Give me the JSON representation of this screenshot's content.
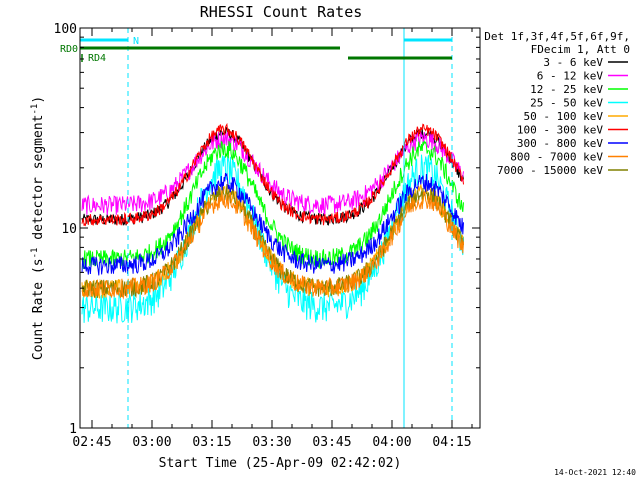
{
  "chart_data": {
    "type": "line",
    "title": "RHESSI Count Rates",
    "xlabel": "Start Time (25-Apr-09 02:42:02)",
    "ylabel_parts": [
      "Count Rate (s",
      "-1",
      " detector segment",
      "-1",
      ")"
    ],
    "y_scale": "log",
    "ylim": [
      1,
      100
    ],
    "y_ticks": [
      {
        "value": 1,
        "label": "1"
      },
      {
        "value": 10,
        "label": "10"
      },
      {
        "value": 100,
        "label": "100"
      }
    ],
    "x_range": [
      "02:42",
      "04:22"
    ],
    "x_ticks": [
      "02:45",
      "03:00",
      "03:15",
      "03:30",
      "03:45",
      "04:00",
      "04:15"
    ],
    "legend_header": [
      "Det 1f,3f,4f,5f,6f,9f,",
      "FDecim 1, Att 0"
    ],
    "series": [
      {
        "name": "3 - 6 keV",
        "color": "#000000",
        "night": 11,
        "peak": 30
      },
      {
        "name": "6 - 12 keV",
        "color": "#ff00ff",
        "night": 13,
        "peak": 28
      },
      {
        "name": "12 - 25 keV",
        "color": "#00ff00",
        "night": 7,
        "peak": 25
      },
      {
        "name": "25 - 50 keV",
        "color": "#00ffff",
        "night": 4,
        "peak": 20
      },
      {
        "name": "50 - 100 keV",
        "color": "#ffaa00",
        "night": 5,
        "peak": 15
      },
      {
        "name": "100 - 300 keV",
        "color": "#ff0000",
        "night": 11,
        "peak": 31
      },
      {
        "name": "300 - 800 keV",
        "color": "#0000ff",
        "night": 6.5,
        "peak": 17
      },
      {
        "name": "800 - 7000 keV",
        "color": "#ff8000",
        "night": 5,
        "peak": 14
      },
      {
        "name": "7000 - 15000 keV",
        "color": "#808000",
        "night": 5,
        "peak": 15
      }
    ],
    "draw_order": [
      0,
      1,
      3,
      4,
      8,
      2,
      6,
      7,
      5
    ],
    "orbit_peaks": [
      "03:18",
      "04:08"
    ],
    "bands": [
      {
        "label": "N",
        "color": "#00e5ff",
        "segments": [
          [
            "02:42",
            "02:54"
          ],
          [
            "04:03",
            "04:15"
          ]
        ]
      },
      {
        "label": "RD0",
        "color": "#007700",
        "segments": [
          [
            "02:42",
            "03:47"
          ]
        ]
      },
      {
        "label": "RD4",
        "color": "#007700",
        "segments": [
          [
            "03:49",
            "04:15"
          ]
        ]
      }
    ],
    "vertical_lines": [
      {
        "time": "02:42",
        "style": "solid"
      },
      {
        "time": "02:54",
        "style": "dashed"
      },
      {
        "time": "04:03",
        "style": "solid"
      },
      {
        "time": "04:15",
        "style": "dashed"
      }
    ],
    "vline_color": "#00e5ff"
  },
  "footer": {
    "timestamp": "14-Oct-2021 12:40"
  }
}
